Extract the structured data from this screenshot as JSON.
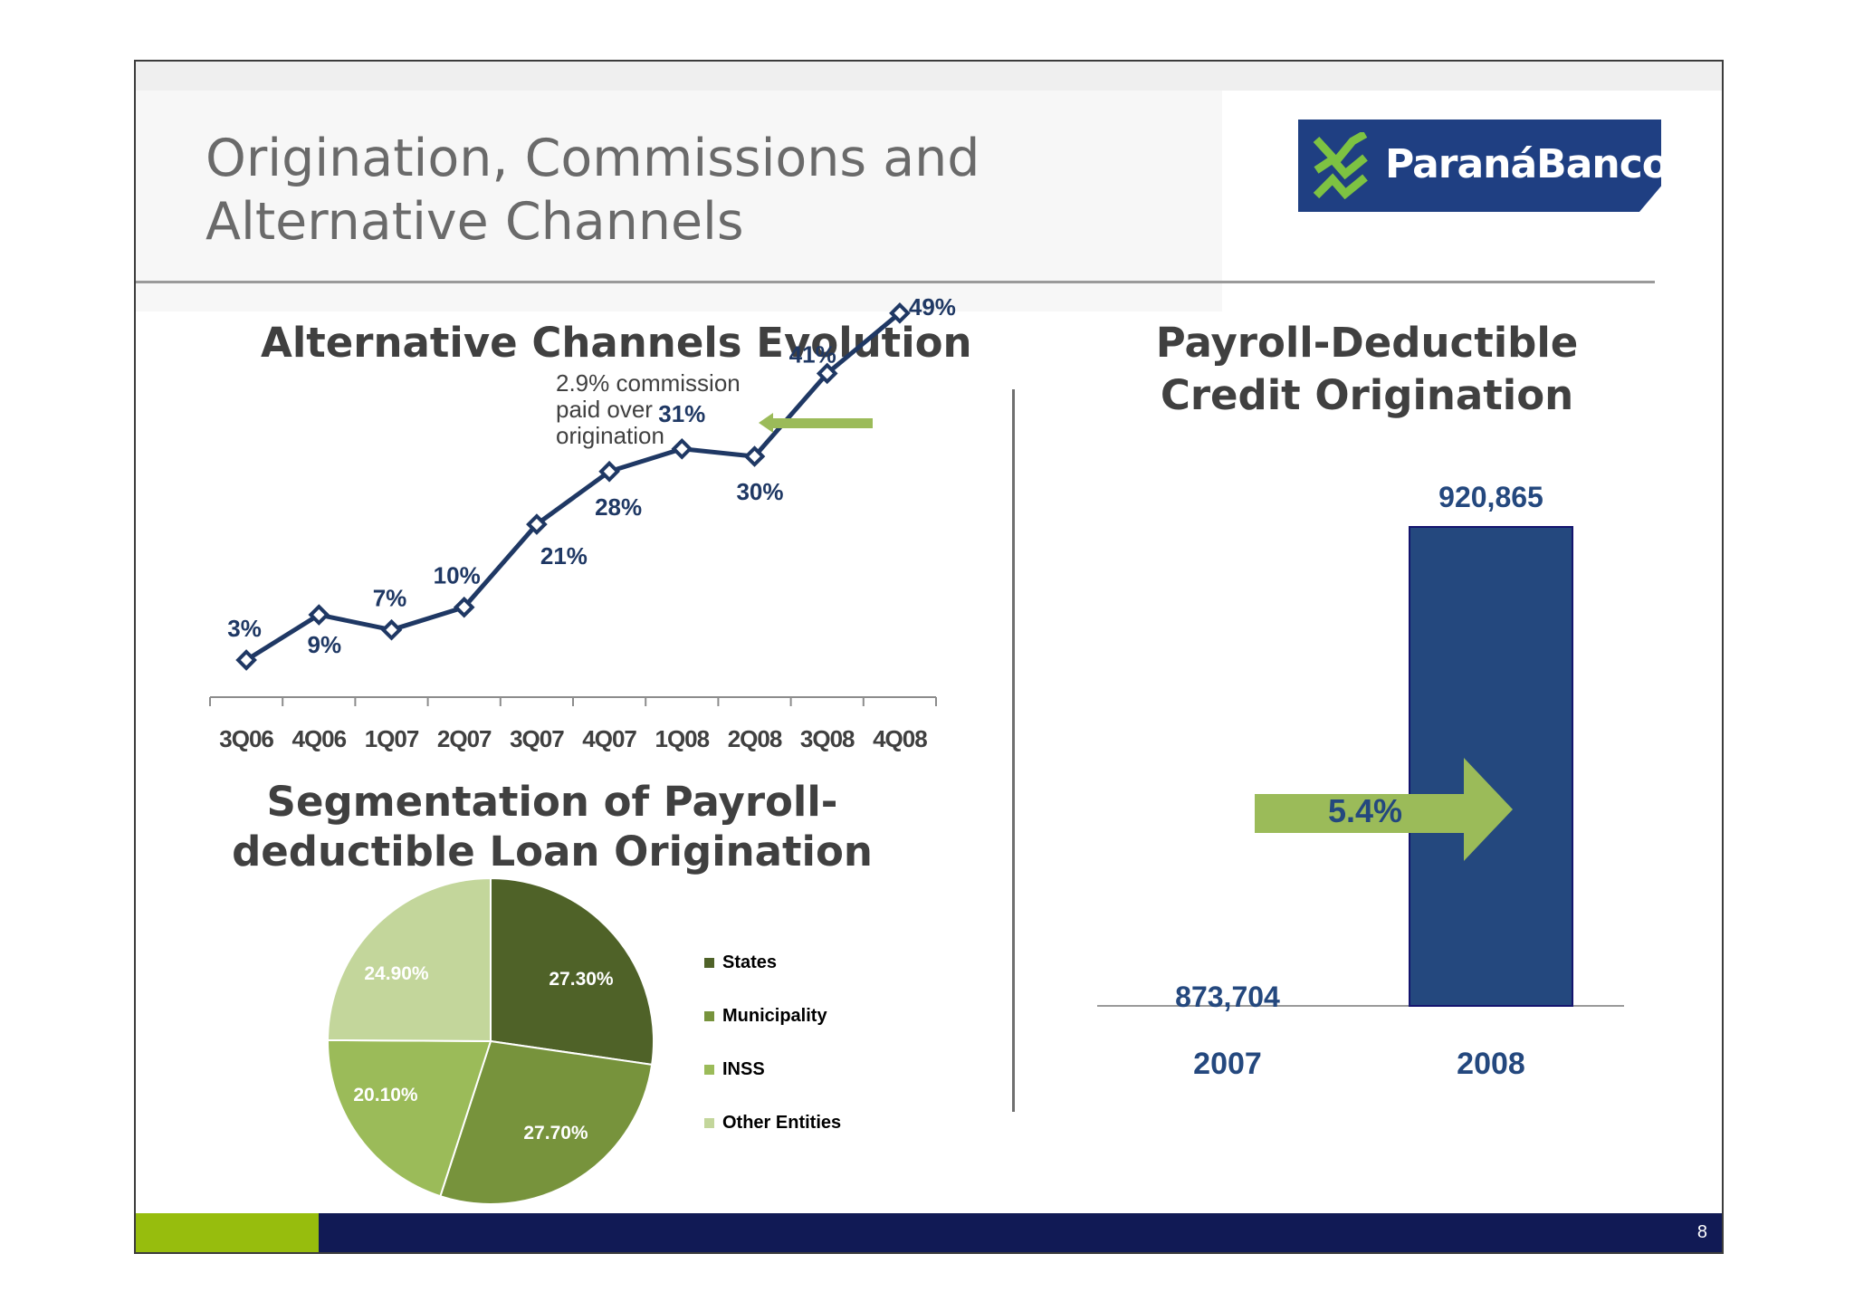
{
  "header": {
    "title_line1": "Origination, Commissions and",
    "title_line2": "Alternative Channels",
    "logo_text": "ParanáBanco"
  },
  "footer": {
    "page_number": "8"
  },
  "colors": {
    "line_series": "#1f3864",
    "bar_fill": "#24487e",
    "arrow_green": "#9bbb59",
    "pie_states": "#4f6228",
    "pie_municipality": "#77933c",
    "pie_inss": "#9bbb59",
    "pie_other": "#c3d69b"
  },
  "chart_data": [
    {
      "type": "line",
      "title": "Alternative Channels Evolution",
      "x": [
        "3Q06",
        "4Q06",
        "1Q07",
        "2Q07",
        "3Q07",
        "4Q07",
        "1Q08",
        "2Q08",
        "3Q08",
        "4Q08"
      ],
      "series": [
        {
          "values": [
            3,
            9,
            7,
            10,
            21,
            28,
            31,
            30,
            41,
            49
          ],
          "labels": [
            "3%",
            "9%",
            "7%",
            "10%",
            "21%",
            "28%",
            "31%",
            "30%",
            "41%",
            "49%"
          ]
        }
      ],
      "ylim": [
        0,
        50
      ],
      "annotation": {
        "text_lines": [
          "2.9% commission",
          "paid over",
          "origination"
        ]
      },
      "grid": false,
      "legend": "none"
    },
    {
      "type": "pie",
      "title": "Segmentation of Payroll-deductible Loan Origination",
      "categories": [
        "States",
        "Municipality",
        "INSS",
        "Other Entities"
      ],
      "values": [
        27.3,
        27.7,
        20.1,
        24.9
      ],
      "labels": [
        "27.30%",
        "27.70%",
        "20.10%",
        "24.90%"
      ],
      "legend": "right"
    },
    {
      "type": "bar",
      "title": "Payroll-Deductible Credit Origination",
      "categories": [
        "2007",
        "2008"
      ],
      "values": [
        873704,
        920865
      ],
      "labels": [
        "873,704",
        "920,865"
      ],
      "growth_label": "5.4%",
      "legend": "none",
      "grid": false
    }
  ]
}
